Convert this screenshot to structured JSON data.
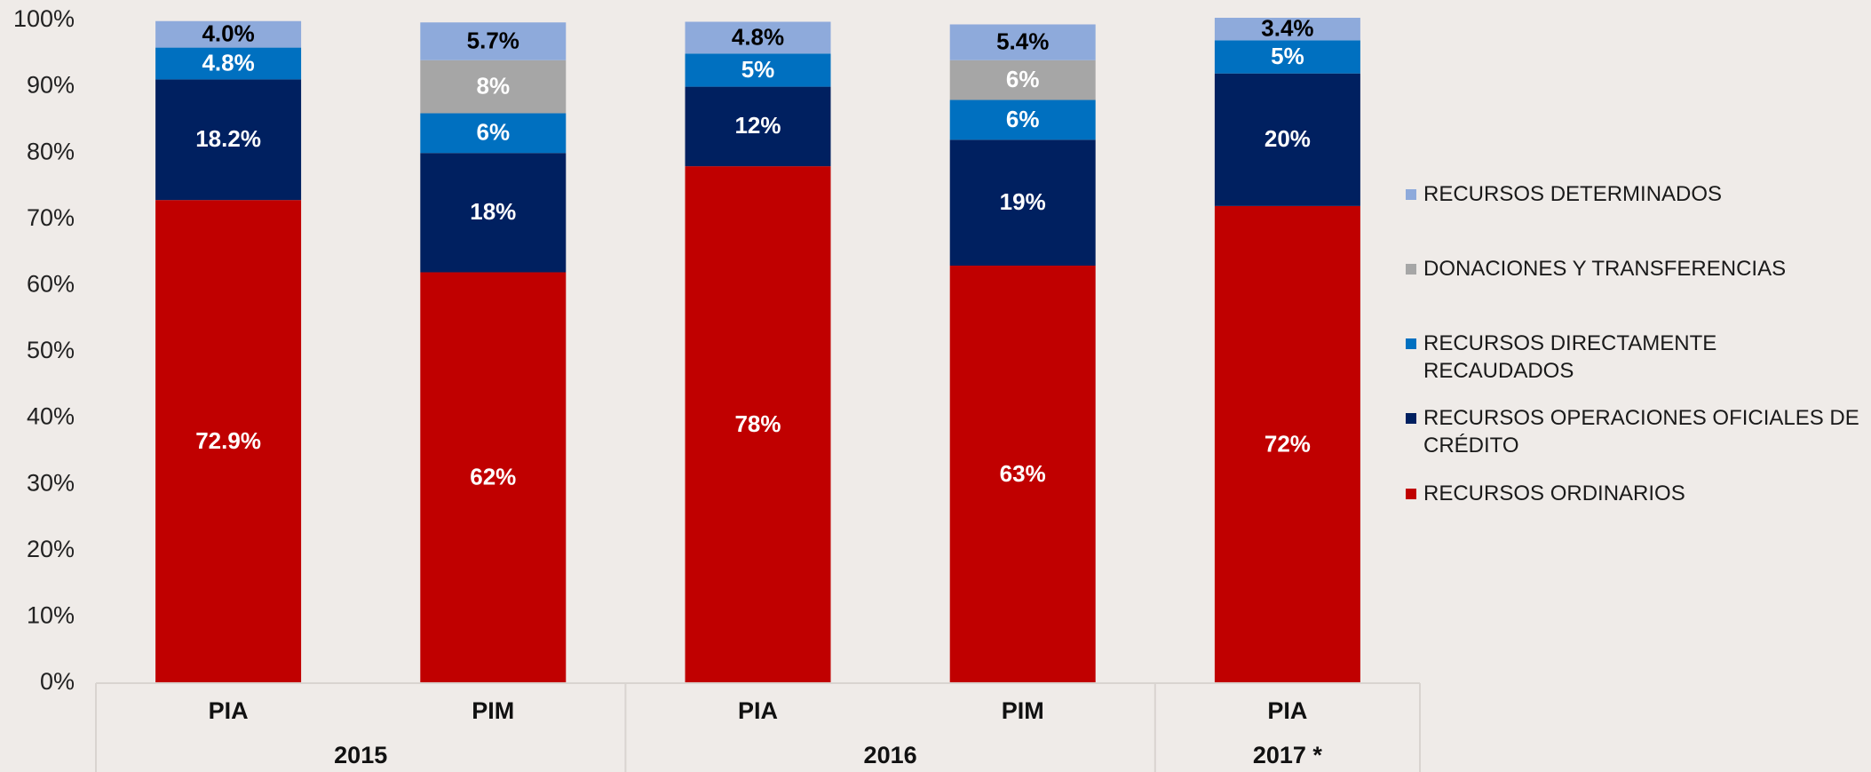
{
  "chart_data": {
    "type": "stacked_bar",
    "categories": [
      "PIA",
      "PIM",
      "PIA",
      "PIM",
      "PIA"
    ],
    "group_labels": [
      "2015",
      null,
      "2016",
      null,
      "2017 *"
    ],
    "ylim": [
      0,
      100
    ],
    "yticks": [
      {
        "value": 0,
        "label": "0%"
      },
      {
        "value": 10,
        "label": "10%"
      },
      {
        "value": 20,
        "label": "20%"
      },
      {
        "value": 30,
        "label": "30%"
      },
      {
        "value": 40,
        "label": "40%"
      },
      {
        "value": 50,
        "label": "50%"
      },
      {
        "value": 60,
        "label": "60%"
      },
      {
        "value": 70,
        "label": "70%"
      },
      {
        "value": 80,
        "label": "80%"
      },
      {
        "value": 90,
        "label": "90%"
      },
      {
        "value": 100,
        "label": "100%"
      }
    ],
    "legend": "right",
    "series": [
      {
        "name": "RECURSOS ORDINARIOS",
        "color": "#c00000",
        "label_color": "#ffffff",
        "values": [
          72.9,
          62,
          78,
          63,
          72
        ],
        "value_labels": [
          "72.9%",
          "62%",
          "78%",
          "63%",
          "72%"
        ]
      },
      {
        "name": "RECURSOS OPERACIONES OFICIALES DE CRÉDITO",
        "color": "#002060",
        "label_color": "#ffffff",
        "values": [
          18.2,
          18,
          12,
          19,
          20
        ],
        "value_labels": [
          "18.2%",
          "18%",
          "12%",
          "19%",
          "20%"
        ]
      },
      {
        "name": "RECURSOS DIRECTAMENTE RECAUDADOS",
        "color": "#0070c0",
        "label_color": "#ffffff",
        "values": [
          4.8,
          6,
          5,
          6,
          5
        ],
        "value_labels": [
          "4.8%",
          "6%",
          "5%",
          "6%",
          "5%"
        ]
      },
      {
        "name": "DONACIONES Y TRANSFERENCIAS",
        "color": "#a6a6a6",
        "label_color": "#ffffff",
        "values": [
          null,
          8,
          null,
          6,
          null
        ],
        "value_labels": [
          null,
          "8%",
          null,
          "6%",
          null
        ]
      },
      {
        "name": "RECURSOS DETERMINADOS",
        "color": "#8eaadb",
        "label_color": "#000000",
        "values": [
          4.0,
          5.7,
          4.8,
          5.4,
          3.4
        ],
        "value_labels": [
          "4.0%",
          "5.7%",
          "4.8%",
          "5.4%",
          "3.4%"
        ]
      }
    ]
  }
}
